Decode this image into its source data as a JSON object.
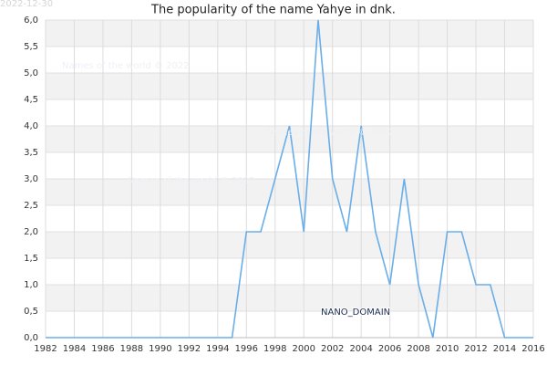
{
  "chart_data": {
    "type": "line",
    "title": "The popularity of the name Yahye in dnk.",
    "timestamp": "2022-12-30",
    "watermarks": [
      "Names of the world © 2022",
      "Names of the world © 2022",
      "Names of the world © 2022",
      "NANO_DOMAIN"
    ],
    "x": [
      1982,
      1983,
      1984,
      1985,
      1986,
      1987,
      1988,
      1989,
      1990,
      1991,
      1992,
      1993,
      1994,
      1995,
      1996,
      1997,
      1998,
      1999,
      2000,
      2001,
      2002,
      2003,
      2004,
      2005,
      2006,
      2007,
      2008,
      2009,
      2010,
      2011,
      2012,
      2013,
      2014,
      2015,
      2016
    ],
    "series": [
      {
        "name": "Yahye",
        "color": "#6aaee8",
        "values": [
          0,
          0,
          0,
          0,
          0,
          0,
          0,
          0,
          0,
          0,
          0,
          0,
          0,
          0,
          2,
          2,
          3,
          4,
          2,
          6,
          3,
          2,
          4,
          2,
          1,
          3,
          1,
          0,
          2,
          2,
          1,
          1,
          0,
          0,
          0
        ]
      }
    ],
    "xlim": [
      1982,
      2016
    ],
    "xticks": [
      1982,
      1984,
      1986,
      1988,
      1990,
      1992,
      1994,
      1996,
      1998,
      2000,
      2002,
      2004,
      2006,
      2008,
      2010,
      2012,
      2014,
      2016
    ],
    "ylim": [
      0,
      6
    ],
    "yticks": [
      {
        "value": 0,
        "label": "0,0"
      },
      {
        "value": 0.5,
        "label": "0,5"
      },
      {
        "value": 1,
        "label": "1,0"
      },
      {
        "value": 1.5,
        "label": "1,5"
      },
      {
        "value": 2,
        "label": "2,0"
      },
      {
        "value": 2.5,
        "label": "2,5"
      },
      {
        "value": 3,
        "label": "3,0"
      },
      {
        "value": 3.5,
        "label": "3,5"
      },
      {
        "value": 4,
        "label": "4,0"
      },
      {
        "value": 4.5,
        "label": "4,5"
      },
      {
        "value": 5,
        "label": "5,0"
      },
      {
        "value": 5.5,
        "label": "5,5"
      },
      {
        "value": 6,
        "label": "6,0"
      }
    ],
    "grid": true
  }
}
